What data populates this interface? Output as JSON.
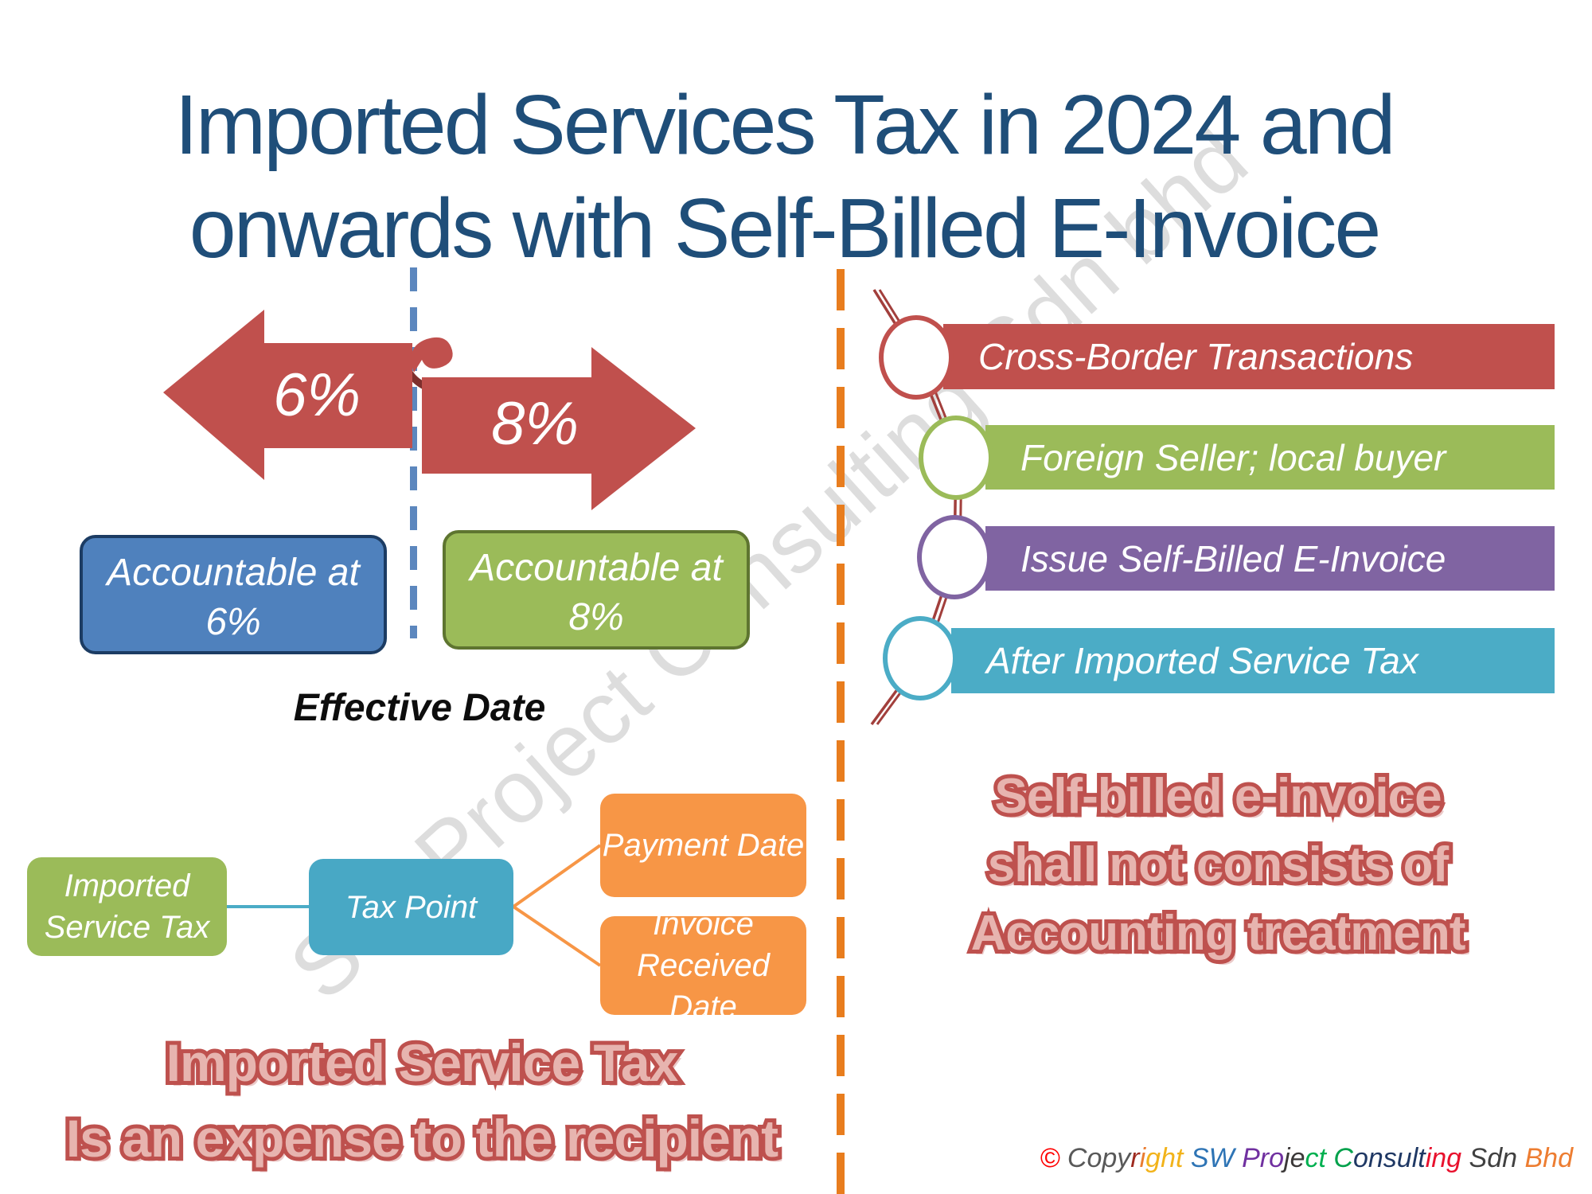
{
  "title": {
    "line1": "Imported Services Tax in 2024 and",
    "line2": "onwards with Self-Billed E-Invoice",
    "color": "#1F4E79"
  },
  "timeline": {
    "old_rate": "6%",
    "new_rate": "8%",
    "arrow_color": "#C0504D",
    "left_box": {
      "line1": "Accountable at",
      "line2": "6%",
      "color": "#4F81BD"
    },
    "right_box": {
      "line1": "Accountable at",
      "line2": "8%",
      "color": "#9BBB59"
    },
    "axis_label": "Effective Date",
    "divider_color": "#5C87BE"
  },
  "steps": {
    "divider_color": "#E87D1E",
    "items": [
      {
        "label": "Cross-Border Transactions",
        "color": "#C0504D"
      },
      {
        "label": "Foreign Seller; local buyer",
        "color": "#9BBB59"
      },
      {
        "label": "Issue Self-Billed E-Invoice",
        "color": "#8064A2"
      },
      {
        "label": "After Imported Service Tax",
        "color": "#4BACC6"
      }
    ]
  },
  "flow": {
    "source": {
      "line1": "Imported",
      "line2": "Service Tax",
      "color": "#9BBB59"
    },
    "hub": {
      "label": "Tax Point",
      "color": "#4BACC6"
    },
    "branch1": {
      "label": "Payment Date",
      "color": "#F79646"
    },
    "branch2": {
      "line1": "Invoice",
      "line2": "Received Date",
      "color": "#F79646"
    }
  },
  "notes": {
    "fill_color": "#E7B4AF",
    "outline_color": "#BE514E",
    "left": {
      "line1": "Imported Service Tax",
      "line2": "Is an expense to the recipient"
    },
    "right": {
      "line1": "Self-billed e-invoice",
      "line2": "shall not consists of",
      "line3": "Accounting treatment"
    }
  },
  "watermark": {
    "text": "SW Project Consulting Sdn bhd"
  },
  "copyright": {
    "segments": [
      {
        "text": "© ",
        "color": "#FF0000"
      },
      {
        "text": "Copy",
        "color": "#595959"
      },
      {
        "text": "r",
        "color": "#9E2A1F"
      },
      {
        "text": "i",
        "color": "#E97C30"
      },
      {
        "text": "gh",
        "color": "#F2B31A"
      },
      {
        "text": "t ",
        "color": "#F2B31A"
      },
      {
        "text": "SW ",
        "color": "#2E74B5"
      },
      {
        "text": "Pro",
        "color": "#7030A0"
      },
      {
        "text": "je",
        "color": "#3B3838"
      },
      {
        "text": "ct ",
        "color": "#00B050"
      },
      {
        "text": "C",
        "color": "#00A14B"
      },
      {
        "text": "onsult",
        "color": "#1F3864"
      },
      {
        "text": "ing ",
        "color": "#E8112D"
      },
      {
        "text": "Sdn ",
        "color": "#404040"
      },
      {
        "text": "Bhd",
        "color": "#ED7D31"
      }
    ]
  }
}
